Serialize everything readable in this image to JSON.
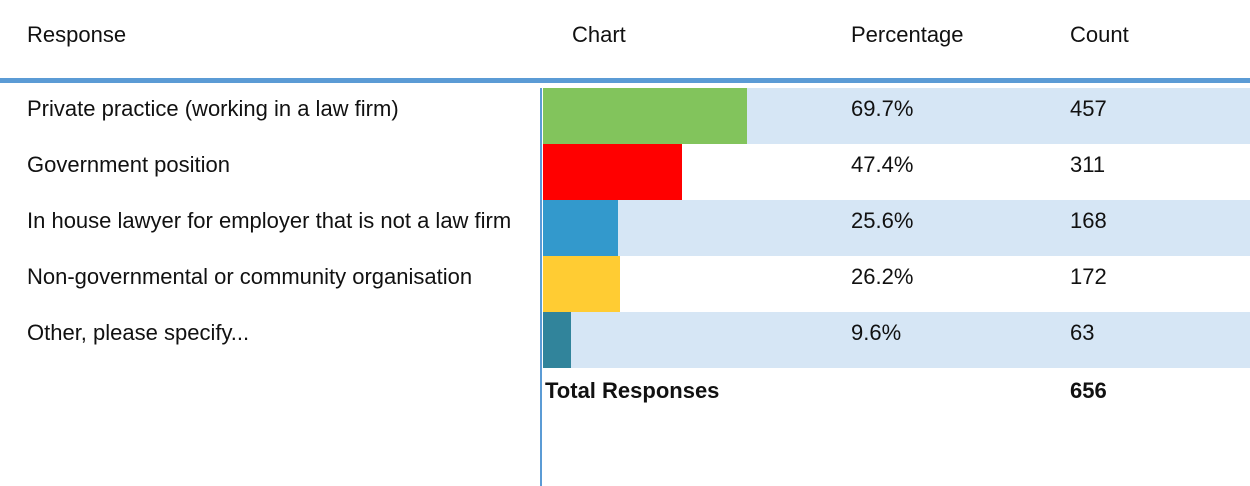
{
  "header": [
    "Response",
    "Chart",
    "Percentage",
    "Count"
  ],
  "rows": [
    {
      "response": "Private practice (working in a law firm)",
      "percentage": {
        "value": 69.7,
        "label": "69.7%"
      },
      "count": 457,
      "color": "#82c45c"
    },
    {
      "response": "Government position",
      "percentage": {
        "value": 47.4,
        "label": "47.4%"
      },
      "count": 311,
      "color": "#ff0000"
    },
    {
      "response": "In house lawyer for employer that is not a law firm",
      "percentage": {
        "value": 25.6,
        "label": "25.6%"
      },
      "count": 168,
      "color": "#3399cc"
    },
    {
      "response": "Non-governmental or community organisation",
      "percentage": {
        "value": 26.2,
        "label": "26.2%"
      },
      "count": 172,
      "color": "#ffcc33"
    },
    {
      "response": "Other, please specify...",
      "percentage": {
        "value": 9.6,
        "label": "9.6%"
      },
      "count": 63,
      "color": "#31849b"
    }
  ],
  "total": {
    "label": "Total Responses",
    "count": 656
  }
}
